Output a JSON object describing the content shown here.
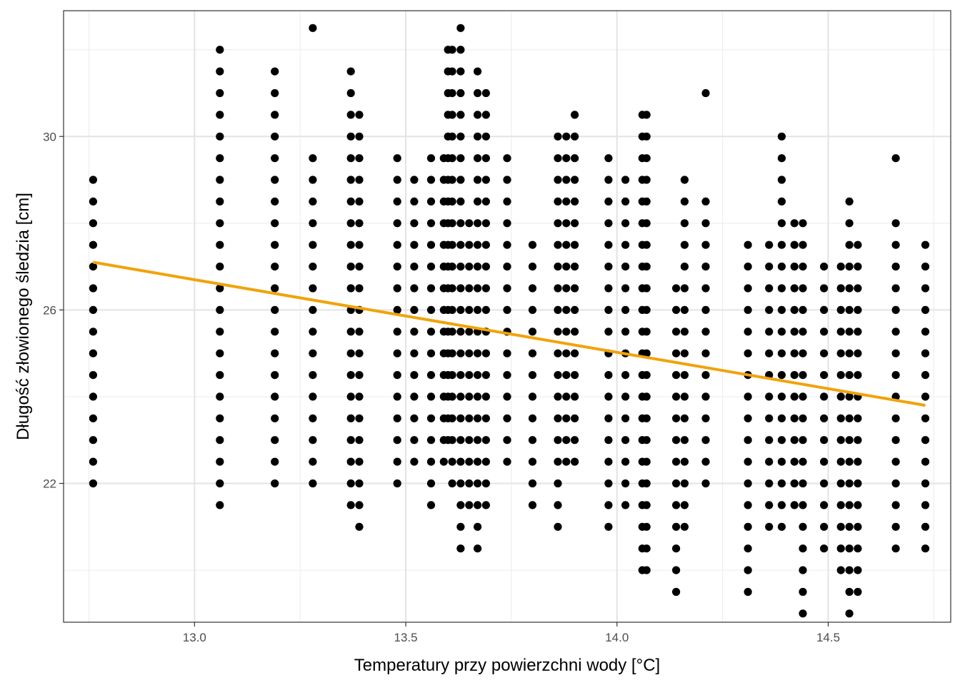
{
  "chart_data": {
    "type": "scatter",
    "title": "",
    "xlabel": "Temperatury przy powierzchni wody [°C]",
    "ylabel": "Długość złowionego śledzia [cm]",
    "xlim": [
      12.69,
      14.79
    ],
    "ylim": [
      18.8,
      32.9
    ],
    "x_ticks": [
      13.0,
      13.5,
      14.0,
      14.5
    ],
    "x_tick_labels": [
      "13.0",
      "13.5",
      "14.0",
      "14.5"
    ],
    "y_ticks": [
      22,
      26,
      30
    ],
    "y_tick_labels": [
      "22",
      "26",
      "30"
    ],
    "grid": true,
    "legend": "none",
    "point_color": "#000000",
    "line_color": "#f0a30a",
    "series": [
      {
        "kind": "points",
        "columns": [
          {
            "x": 12.76,
            "ymin": 22.0,
            "ymax": 29.0
          },
          {
            "x": 13.06,
            "ymin": 21.5,
            "ymax": 32.0
          },
          {
            "x": 13.19,
            "ymin": 22.0,
            "ymax": 31.5
          },
          {
            "x": 13.28,
            "ymin": 22.0,
            "ymax": 29.5,
            "extra": [
              32.5
            ]
          },
          {
            "x": 13.37,
            "ymin": 21.5,
            "ymax": 31.5
          },
          {
            "x": 13.39,
            "ymin": 21.0,
            "ymax": 30.5
          },
          {
            "x": 13.48,
            "ymin": 22.0,
            "ymax": 29.5
          },
          {
            "x": 13.52,
            "ymin": 22.5,
            "ymax": 29.0
          },
          {
            "x": 13.56,
            "ymin": 21.5,
            "ymax": 29.5
          },
          {
            "x": 13.59,
            "ymin": 22.5,
            "ymax": 29.5
          },
          {
            "x": 13.6,
            "ymin": 23.0,
            "ymax": 32.0
          },
          {
            "x": 13.61,
            "ymin": 22.0,
            "ymax": 32.0
          },
          {
            "x": 13.63,
            "ymin": 20.5,
            "ymax": 32.5
          },
          {
            "x": 13.65,
            "ymin": 21.5,
            "ymax": 28.0
          },
          {
            "x": 13.67,
            "ymin": 20.5,
            "ymax": 31.5
          },
          {
            "x": 13.69,
            "ymin": 21.5,
            "ymax": 31.0
          },
          {
            "x": 13.74,
            "ymin": 22.5,
            "ymax": 29.5
          },
          {
            "x": 13.8,
            "ymin": 21.5,
            "ymax": 27.5
          },
          {
            "x": 13.86,
            "ymin": 21.0,
            "ymax": 30.0
          },
          {
            "x": 13.88,
            "ymin": 22.5,
            "ymax": 30.0
          },
          {
            "x": 13.9,
            "ymin": 22.5,
            "ymax": 30.5
          },
          {
            "x": 13.98,
            "ymin": 21.0,
            "ymax": 29.5
          },
          {
            "x": 14.02,
            "ymin": 21.5,
            "ymax": 29.0
          },
          {
            "x": 14.06,
            "ymin": 20.0,
            "ymax": 30.5
          },
          {
            "x": 14.07,
            "ymin": 20.0,
            "ymax": 30.5
          },
          {
            "x": 14.14,
            "ymin": 19.5,
            "ymax": 26.5
          },
          {
            "x": 14.16,
            "ymin": 21.0,
            "ymax": 29.0
          },
          {
            "x": 14.21,
            "ymin": 22.0,
            "ymax": 28.5,
            "extra": [
              31.0
            ]
          },
          {
            "x": 14.31,
            "ymin": 19.5,
            "ymax": 27.5
          },
          {
            "x": 14.36,
            "ymin": 21.0,
            "ymax": 27.5
          },
          {
            "x": 14.39,
            "ymin": 21.0,
            "ymax": 30.0
          },
          {
            "x": 14.42,
            "ymin": 21.5,
            "ymax": 28.0
          },
          {
            "x": 14.44,
            "ymin": 19.0,
            "ymax": 28.0
          },
          {
            "x": 14.49,
            "ymin": 20.5,
            "ymax": 27.0
          },
          {
            "x": 14.53,
            "ymin": 20.0,
            "ymax": 27.0
          },
          {
            "x": 14.55,
            "ymin": 19.0,
            "ymax": 28.5
          },
          {
            "x": 14.57,
            "ymin": 19.5,
            "ymax": 27.5
          },
          {
            "x": 14.66,
            "ymin": 20.5,
            "ymax": 28.0,
            "extra": [
              29.5
            ]
          },
          {
            "x": 14.73,
            "ymin": 20.5,
            "ymax": 27.5
          }
        ]
      },
      {
        "kind": "line",
        "x": [
          12.76,
          14.73
        ],
        "y": [
          27.1,
          23.8
        ]
      }
    ]
  }
}
